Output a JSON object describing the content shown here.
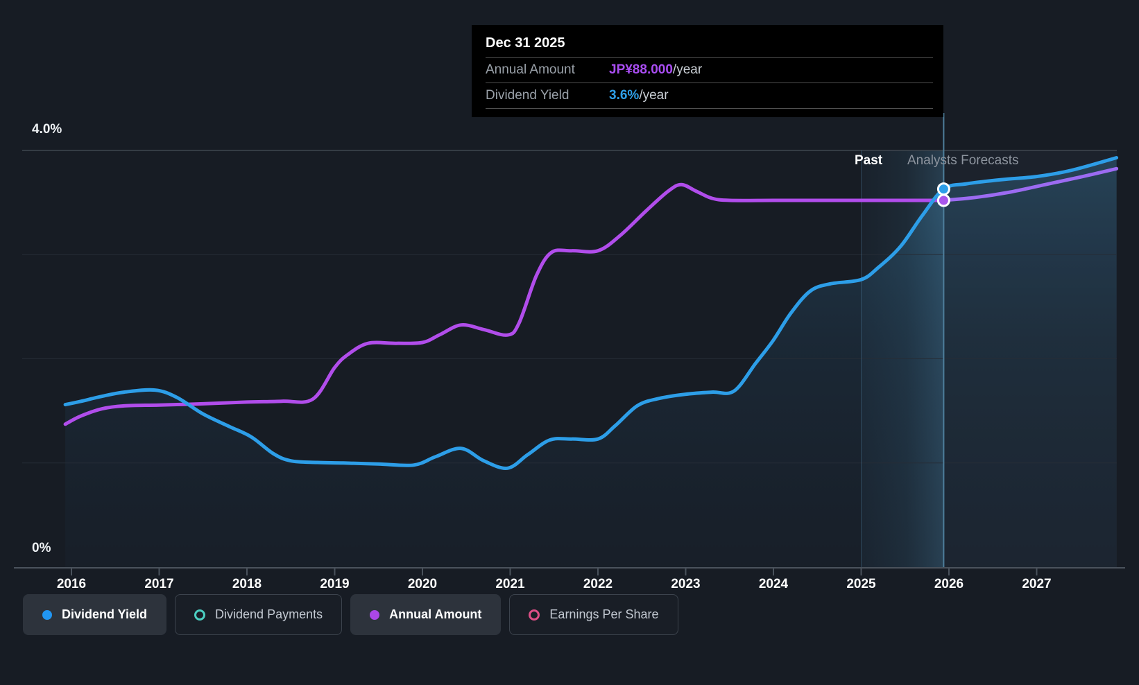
{
  "tooltip": {
    "date": "Dec 31 2025",
    "rows": [
      {
        "label": "Annual Amount",
        "value": "JP¥88.000",
        "suffix": "/year",
        "color": "#a94df2"
      },
      {
        "label": "Dividend Yield",
        "value": "3.6%",
        "suffix": "/year",
        "color": "#2f9fe8"
      }
    ]
  },
  "axis": {
    "y_top_label": "4.0%",
    "y_bottom_label": "0%",
    "x_labels": [
      "2016",
      "2017",
      "2018",
      "2019",
      "2020",
      "2021",
      "2022",
      "2023",
      "2024",
      "2025",
      "2026",
      "2027"
    ]
  },
  "annotations": {
    "past": "Past",
    "forecast": "Analysts Forecasts"
  },
  "legend": [
    {
      "label": "Dividend Yield",
      "marker": "filled",
      "color": "#2196f3",
      "active": true
    },
    {
      "label": "Dividend Payments",
      "marker": "ring",
      "color": "#4ccfc2",
      "active": false
    },
    {
      "label": "Annual Amount",
      "marker": "filled",
      "color": "#ab47e8",
      "active": true
    },
    {
      "label": "Earnings Per Share",
      "marker": "ring",
      "color": "#dd4f86",
      "active": false
    }
  ],
  "chart_data": {
    "type": "line",
    "x_axis": {
      "ticks": [
        2016,
        2017,
        2018,
        2019,
        2020,
        2021,
        2022,
        2023,
        2024,
        2025,
        2026,
        2027
      ],
      "range": [
        2015.93,
        2027.91
      ]
    },
    "y_axis": {
      "unit": "%",
      "range": [
        0,
        4.0
      ],
      "labeled_ticks": [
        "0%",
        "4.0%"
      ],
      "gridlines_pct": [
        1,
        2,
        3,
        4
      ]
    },
    "divider_year": 2025.94,
    "regions": {
      "past_label": "Past",
      "forecast_label": "Analysts Forecasts"
    },
    "legend_position": "bottom",
    "series": [
      {
        "name": "Dividend Yield",
        "unit": "%",
        "color": "#2d9ee8",
        "points": [
          [
            2015.93,
            1.56
          ],
          [
            2016.1,
            1.59
          ],
          [
            2016.35,
            1.64
          ],
          [
            2016.6,
            1.68
          ],
          [
            2016.95,
            1.7
          ],
          [
            2017.2,
            1.63
          ],
          [
            2017.5,
            1.47
          ],
          [
            2017.8,
            1.35
          ],
          [
            2018.05,
            1.25
          ],
          [
            2018.3,
            1.09
          ],
          [
            2018.5,
            1.02
          ],
          [
            2018.8,
            1.005
          ],
          [
            2019.1,
            1.0
          ],
          [
            2019.5,
            0.99
          ],
          [
            2019.9,
            0.98
          ],
          [
            2020.15,
            1.06
          ],
          [
            2020.44,
            1.14
          ],
          [
            2020.7,
            1.02
          ],
          [
            2020.97,
            0.95
          ],
          [
            2021.2,
            1.08
          ],
          [
            2021.45,
            1.22
          ],
          [
            2021.7,
            1.23
          ],
          [
            2022.0,
            1.23
          ],
          [
            2022.2,
            1.36
          ],
          [
            2022.45,
            1.55
          ],
          [
            2022.7,
            1.62
          ],
          [
            2023.0,
            1.66
          ],
          [
            2023.3,
            1.68
          ],
          [
            2023.55,
            1.69
          ],
          [
            2023.8,
            1.96
          ],
          [
            2024.0,
            2.18
          ],
          [
            2024.2,
            2.44
          ],
          [
            2024.42,
            2.65
          ],
          [
            2024.65,
            2.72
          ],
          [
            2025.0,
            2.76
          ],
          [
            2025.2,
            2.88
          ],
          [
            2025.45,
            3.08
          ],
          [
            2025.7,
            3.38
          ],
          [
            2025.94,
            3.63
          ],
          [
            2026.2,
            3.68
          ],
          [
            2026.6,
            3.72
          ],
          [
            2027.0,
            3.75
          ],
          [
            2027.4,
            3.81
          ],
          [
            2027.91,
            3.93
          ]
        ]
      },
      {
        "name": "Annual Amount",
        "unit": "JP¥/year",
        "color": "#b14deb",
        "forecast_color": "#9c6bf2",
        "scale_note": "JP¥88.000 aligns with 3.52% on the yield axis",
        "points": [
          [
            2015.93,
            34.3
          ],
          [
            2016.1,
            36.2
          ],
          [
            2016.35,
            38.0
          ],
          [
            2016.6,
            38.7
          ],
          [
            2017.0,
            38.9
          ],
          [
            2017.5,
            39.2
          ],
          [
            2018.0,
            39.6
          ],
          [
            2018.4,
            39.8
          ],
          [
            2018.75,
            40.3
          ],
          [
            2019.0,
            47.9
          ],
          [
            2019.15,
            51.0
          ],
          [
            2019.38,
            53.7
          ],
          [
            2019.7,
            53.7
          ],
          [
            2020.0,
            53.9
          ],
          [
            2020.2,
            55.8
          ],
          [
            2020.44,
            58.1
          ],
          [
            2020.7,
            57.0
          ],
          [
            2020.97,
            55.7
          ],
          [
            2021.1,
            58.5
          ],
          [
            2021.3,
            70.0
          ],
          [
            2021.47,
            75.5
          ],
          [
            2021.7,
            75.9
          ],
          [
            2022.0,
            75.9
          ],
          [
            2022.25,
            79.5
          ],
          [
            2022.55,
            85.5
          ],
          [
            2022.8,
            90.2
          ],
          [
            2022.95,
            91.8
          ],
          [
            2023.12,
            90.2
          ],
          [
            2023.3,
            88.5
          ],
          [
            2023.5,
            88.0
          ],
          [
            2024.0,
            88.0
          ],
          [
            2024.5,
            88.0
          ],
          [
            2025.0,
            88.0
          ],
          [
            2025.5,
            88.0
          ],
          [
            2025.94,
            88.0
          ],
          [
            2026.3,
            88.7
          ],
          [
            2026.7,
            90.0
          ],
          [
            2027.1,
            91.8
          ],
          [
            2027.5,
            93.6
          ],
          [
            2027.91,
            95.6
          ]
        ]
      }
    ],
    "markers": [
      {
        "series": "Dividend Yield",
        "date": "Dec 31 2025",
        "value": 3.6,
        "unit": "%/year"
      },
      {
        "series": "Annual Amount",
        "date": "Dec 31 2025",
        "value": 88.0,
        "unit": "JP¥/year"
      }
    ]
  }
}
